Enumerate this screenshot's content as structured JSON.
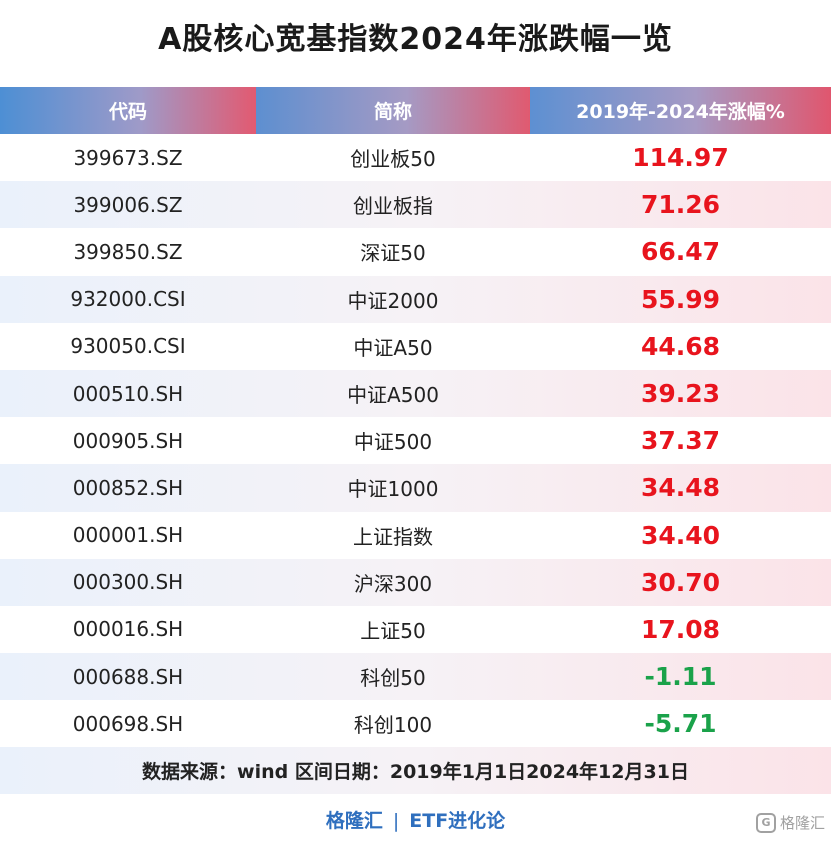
{
  "title": "A股核心宽基指数2024年涨跌幅一览",
  "table": {
    "headers": [
      "代码",
      "简称",
      "2019年-2024年涨幅%"
    ],
    "rows": [
      {
        "code": "399673.SZ",
        "name": "创业板50",
        "change": "114.97"
      },
      {
        "code": "399006.SZ",
        "name": "创业板指",
        "change": "71.26"
      },
      {
        "code": "399850.SZ",
        "name": "深证50",
        "change": "66.47"
      },
      {
        "code": "932000.CSI",
        "name": "中证2000",
        "change": "55.99"
      },
      {
        "code": "930050.CSI",
        "name": "中证A50",
        "change": "44.68"
      },
      {
        "code": "000510.SH",
        "name": "中证A500",
        "change": "39.23"
      },
      {
        "code": "000905.SH",
        "name": "中证500",
        "change": "37.37"
      },
      {
        "code": "000852.SH",
        "name": "中证1000",
        "change": "34.48"
      },
      {
        "code": "000001.SH",
        "name": "上证指数",
        "change": "34.40"
      },
      {
        "code": "000300.SH",
        "name": "沪深300",
        "change": "30.70"
      },
      {
        "code": "000016.SH",
        "name": "上证50",
        "change": "17.08"
      },
      {
        "code": "000688.SH",
        "name": "科创50",
        "change": "-1.11"
      },
      {
        "code": "000698.SH",
        "name": "科创100",
        "change": "-5.71"
      }
    ],
    "source": "数据来源：wind 区间日期：2019年1月1日2024年12月31日"
  },
  "footer": {
    "brand": "格隆汇",
    "separator": "|",
    "channel": "ETF进化论"
  },
  "watermark": {
    "text": "格隆汇"
  },
  "colors": {
    "positive": "#e8141d",
    "negative": "#1aa24a",
    "brand": "#2f6fbe"
  }
}
